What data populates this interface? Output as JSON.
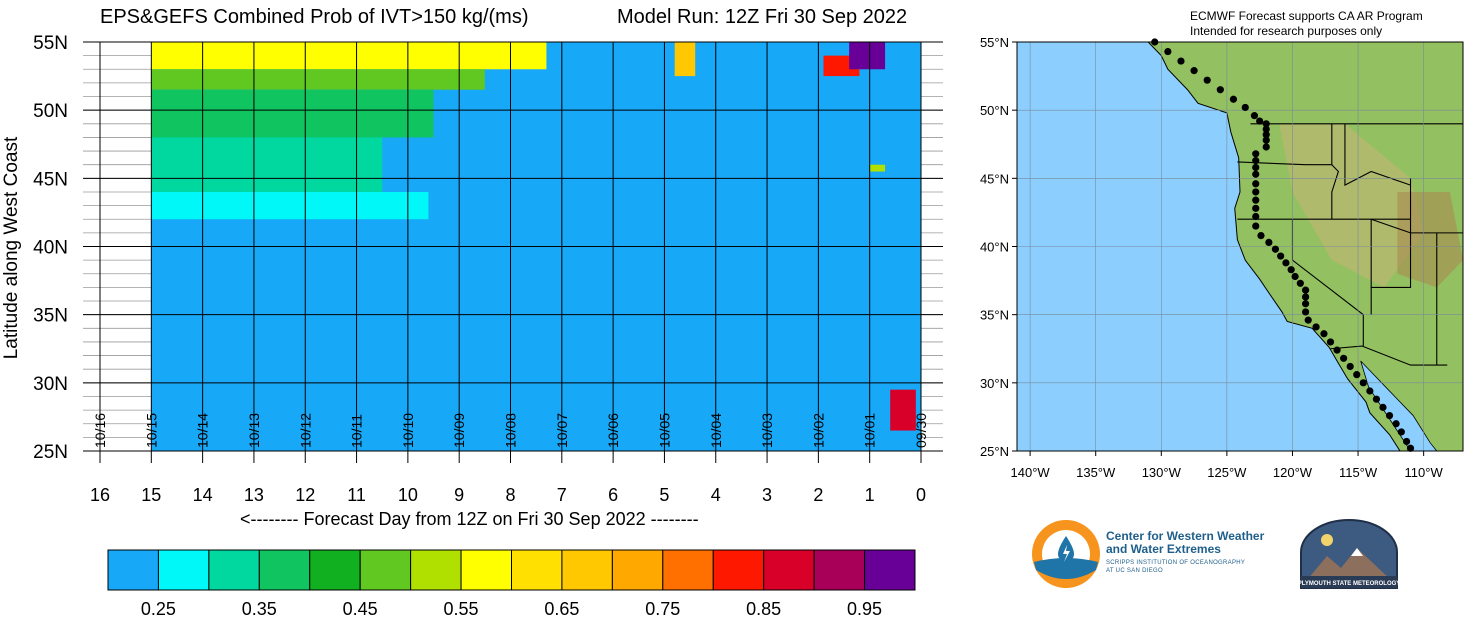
{
  "header": {
    "title": "EPS&GEFS Combined Prob of IVT>150 kg/(ms)",
    "model_run": "Model Run: 12Z Fri 30 Sep 2022"
  },
  "credit": {
    "line1": "ECMWF Forecast supports CA AR Program",
    "line2": "Intended for research purposes only"
  },
  "logos": {
    "cw3e_line1": "Center for Western Weather",
    "cw3e_line2": "and Water Extremes",
    "cw3e_sub1": "SCRIPPS INSTITUTION OF OCEANOGRAPHY",
    "cw3e_sub2": "AT UC SAN DIEGO",
    "psu": "PLYMOUTH STATE METEOROLOGY"
  },
  "chart_data": [
    {
      "type": "heatmap",
      "title": "EPS&GEFS Combined Prob of IVT>150 kg/(ms)",
      "xlabel": "<-------- Forecast Day from 12Z on Fri 30 Sep 2022 --------",
      "ylabel": "Latitude along West Coast",
      "x_ticks": [
        "16",
        "15",
        "14",
        "13",
        "12",
        "11",
        "10",
        "9",
        "8",
        "7",
        "6",
        "5",
        "4",
        "3",
        "2",
        "1",
        "0"
      ],
      "x_range": [
        16,
        0
      ],
      "y_ticks": [
        "55N",
        "50N",
        "45N",
        "40N",
        "35N",
        "30N",
        "25N"
      ],
      "y_range": [
        25,
        55
      ],
      "date_labels": [
        "10/16",
        "10/15",
        "10/14",
        "10/13",
        "10/12",
        "10/11",
        "10/10",
        "10/09",
        "10/08",
        "10/07",
        "10/06",
        "10/05",
        "10/04",
        "10/03",
        "10/02",
        "10/01",
        "09/30"
      ],
      "background_value": 0.25,
      "regions": [
        {
          "x": [
            15,
            7.3
          ],
          "y": [
            53,
            55
          ],
          "value": 0.6
        },
        {
          "x": [
            15,
            8.5
          ],
          "y": [
            51.5,
            53
          ],
          "value": 0.5
        },
        {
          "x": [
            15,
            9.5
          ],
          "y": [
            48,
            51.5
          ],
          "value": 0.4
        },
        {
          "x": [
            15,
            10.5
          ],
          "y": [
            44,
            48
          ],
          "value": 0.35
        },
        {
          "x": [
            15,
            9.6
          ],
          "y": [
            42,
            44
          ],
          "value": 0.3
        },
        {
          "x": [
            4.8,
            4.4
          ],
          "y": [
            52.5,
            55
          ],
          "value": 0.7
        },
        {
          "x": [
            1.9,
            1.2
          ],
          "y": [
            52.5,
            54
          ],
          "value": 0.85
        },
        {
          "x": [
            1.4,
            0.7
          ],
          "y": [
            53,
            55
          ],
          "value": 1.0
        },
        {
          "x": [
            1.0,
            0.7
          ],
          "y": [
            45.5,
            46
          ],
          "value": 0.55
        },
        {
          "x": [
            0.6,
            0.1
          ],
          "y": [
            26.5,
            29.5
          ],
          "value": 0.9
        }
      ],
      "colorbar": {
        "colors": [
          "#18a8f8",
          "#00f8f8",
          "#00d8a0",
          "#10c460",
          "#10b020",
          "#60c820",
          "#b0e000",
          "#ffff00",
          "#ffe000",
          "#ffc800",
          "#ffa800",
          "#ff7000",
          "#ff1800",
          "#d80028",
          "#a80058",
          "#680098"
        ],
        "tick_labels": [
          "0.25",
          "0.35",
          "0.45",
          "0.55",
          "0.65",
          "0.75",
          "0.85",
          "0.95"
        ]
      }
    },
    {
      "type": "map",
      "x_ticks": [
        "140°W",
        "135°W",
        "130°W",
        "125°W",
        "120°W",
        "115°W",
        "110°W"
      ],
      "x_range": [
        -141,
        -107
      ],
      "y_ticks": [
        "55°N",
        "50°N",
        "45°N",
        "40°N",
        "35°N",
        "30°N",
        "25°N"
      ],
      "y_range": [
        25,
        55
      ],
      "ocean_color": "#8ccfff",
      "land_color": "#93c060",
      "marker_color": "#000000",
      "markers": [
        [
          -130.5,
          55
        ],
        [
          -129.5,
          54.3
        ],
        [
          -128.5,
          53.6
        ],
        [
          -127.5,
          52.9
        ],
        [
          -126.5,
          52.2
        ],
        [
          -125.5,
          51.5
        ],
        [
          -124.5,
          50.8
        ],
        [
          -123.6,
          50.2
        ],
        [
          -122.9,
          49.6
        ],
        [
          -122.5,
          49.2
        ],
        [
          -122.0,
          49.0
        ],
        [
          -122.0,
          48.6
        ],
        [
          -122.0,
          48.2
        ],
        [
          -122.0,
          47.8
        ],
        [
          -122.0,
          47.3
        ],
        [
          -122.8,
          46.8
        ],
        [
          -122.8,
          46.3
        ],
        [
          -122.8,
          45.8
        ],
        [
          -122.8,
          45.3
        ],
        [
          -122.8,
          44.6
        ],
        [
          -122.8,
          44.0
        ],
        [
          -122.8,
          43.4
        ],
        [
          -122.8,
          42.8
        ],
        [
          -122.8,
          42.2
        ],
        [
          -122.8,
          41.5
        ],
        [
          -122.4,
          40.8
        ],
        [
          -121.8,
          40.3
        ],
        [
          -121.3,
          39.8
        ],
        [
          -120.9,
          39.3
        ],
        [
          -120.5,
          38.8
        ],
        [
          -120.1,
          38.3
        ],
        [
          -119.8,
          37.8
        ],
        [
          -119.4,
          37.3
        ],
        [
          -119.0,
          36.8
        ],
        [
          -119.0,
          36.3
        ],
        [
          -119.0,
          35.8
        ],
        [
          -119.0,
          35.2
        ],
        [
          -118.8,
          34.6
        ],
        [
          -118.2,
          34.1
        ],
        [
          -117.6,
          33.6
        ],
        [
          -117.1,
          33.0
        ],
        [
          -116.6,
          32.4
        ],
        [
          -116.1,
          31.8
        ],
        [
          -115.6,
          31.2
        ],
        [
          -115.1,
          30.6
        ],
        [
          -114.6,
          30.0
        ],
        [
          -114.1,
          29.4
        ],
        [
          -113.6,
          28.8
        ],
        [
          -113.1,
          28.2
        ],
        [
          -112.6,
          27.6
        ],
        [
          -112.1,
          27.0
        ],
        [
          -111.7,
          26.4
        ],
        [
          -111.3,
          25.7
        ],
        [
          -111.0,
          25.2
        ]
      ]
    }
  ]
}
